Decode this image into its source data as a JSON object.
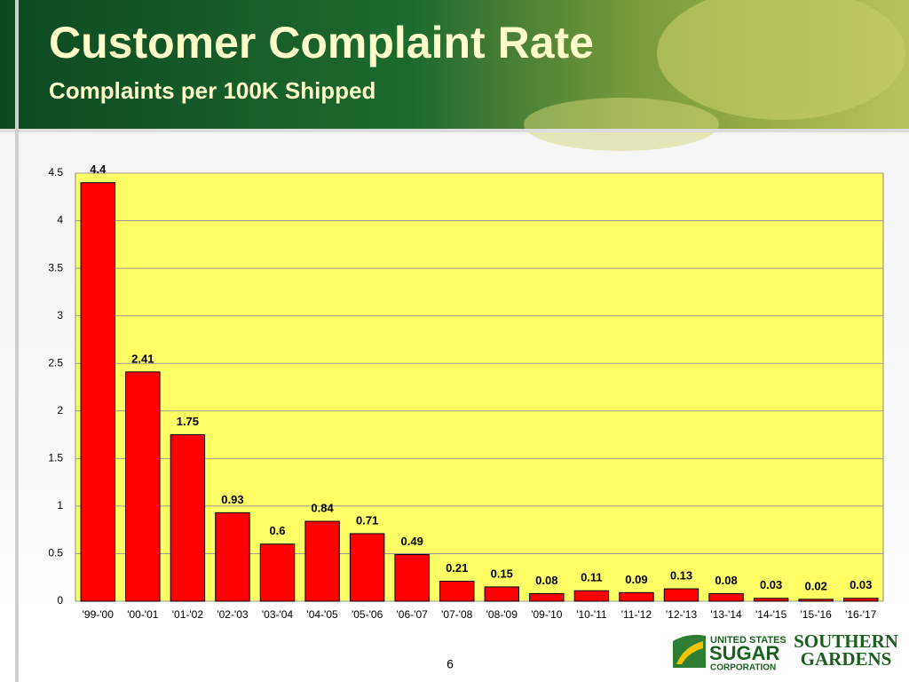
{
  "chart_data": {
    "type": "bar",
    "title": "Customer Complaint Rate",
    "subtitle": "Complaints per 100K Shipped",
    "categories": [
      "'99-'00",
      "'00-'01",
      "'01-'02",
      "'02-'03",
      "'03-'04",
      "'04-'05",
      "'05-'06",
      "'06-'07",
      "'07-'08",
      "'08-'09",
      "'09-'10",
      "'10-'11",
      "'11-'12",
      "'12-'13",
      "'13-'14",
      "'14-'15",
      "'15-'16",
      "'16-'17"
    ],
    "values": [
      4.4,
      2.41,
      1.75,
      0.93,
      0.6,
      0.84,
      0.71,
      0.49,
      0.21,
      0.15,
      0.08,
      0.11,
      0.09,
      0.13,
      0.08,
      0.03,
      0.02,
      0.03
    ],
    "color": "#ff0000",
    "ylim": [
      0,
      4.5
    ],
    "yticks": [
      0,
      0.5,
      1,
      1.5,
      2,
      2.5,
      3,
      3.5,
      4,
      4.5
    ],
    "grid": true
  },
  "slide_number": "6",
  "logos": [
    "UNITED STATES",
    "SUGAR",
    "CORPORATION",
    "SOUTHERN",
    "GARDENS"
  ]
}
